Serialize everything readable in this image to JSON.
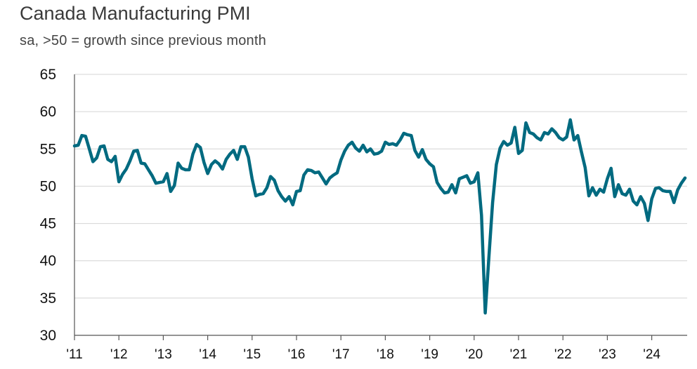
{
  "chart_data": {
    "type": "line",
    "title": "Canada Manufacturing PMI",
    "subtitle": "sa, >50 = growth since previous month",
    "xlabel": "",
    "ylabel": "",
    "ylim": [
      30,
      65
    ],
    "y_ticks": [
      "65",
      "60",
      "55",
      "50",
      "45",
      "40",
      "35",
      "30"
    ],
    "x_tick_labels": [
      "'11",
      "'12",
      "'13",
      "'14",
      "'15",
      "'16",
      "'17",
      "'18",
      "'19",
      "'20",
      "'21",
      "'22",
      "'23",
      "'24"
    ],
    "x_start_year": 2011,
    "grid": "horizontal",
    "line_color": "#006a80",
    "series": [
      {
        "name": "Canada Manufacturing PMI",
        "values": [
          55.4,
          55.5,
          56.8,
          56.7,
          55.0,
          53.3,
          53.8,
          55.3,
          55.4,
          53.6,
          53.3,
          54.0,
          50.6,
          51.6,
          52.3,
          53.4,
          54.7,
          54.8,
          53.1,
          53.0,
          52.2,
          51.4,
          50.4,
          50.5,
          50.6,
          51.7,
          49.3,
          50.1,
          53.1,
          52.4,
          52.2,
          52.2,
          54.3,
          55.6,
          55.2,
          53.2,
          51.7,
          52.9,
          53.4,
          53.0,
          52.3,
          53.6,
          54.3,
          54.8,
          53.6,
          55.3,
          55.3,
          53.9,
          51.0,
          48.7,
          48.9,
          49.0,
          49.8,
          51.3,
          50.8,
          49.4,
          48.6,
          48.0,
          48.6,
          47.5,
          49.3,
          49.4,
          51.5,
          52.2,
          52.1,
          51.8,
          51.9,
          51.1,
          50.3,
          51.1,
          51.5,
          51.8,
          53.5,
          54.7,
          55.5,
          55.9,
          55.1,
          54.7,
          55.5,
          54.6,
          55.0,
          54.3,
          54.4,
          54.7,
          55.9,
          55.6,
          55.7,
          55.5,
          56.2,
          57.1,
          56.9,
          56.8,
          54.8,
          53.9,
          54.9,
          53.6,
          53.0,
          52.6,
          50.5,
          49.7,
          49.1,
          49.2,
          50.2,
          49.1,
          51.0,
          51.2,
          51.4,
          50.4,
          50.6,
          51.8,
          46.1,
          33.0,
          40.6,
          47.8,
          52.9,
          55.1,
          56.0,
          55.5,
          55.8,
          57.9,
          54.4,
          54.8,
          58.5,
          57.2,
          57.0,
          56.5,
          56.2,
          57.2,
          57.0,
          57.7,
          57.2,
          56.5,
          56.2,
          56.6,
          58.9,
          56.2,
          56.8,
          54.6,
          52.5,
          48.7,
          49.8,
          48.8,
          49.6,
          49.2,
          51.0,
          52.4,
          48.6,
          50.2,
          49.0,
          48.8,
          49.6,
          48.0,
          47.5,
          48.6,
          47.7,
          45.4,
          48.3,
          49.7,
          49.8,
          49.4,
          49.3,
          49.3,
          47.8,
          49.5,
          50.4,
          51.1
        ]
      }
    ]
  }
}
